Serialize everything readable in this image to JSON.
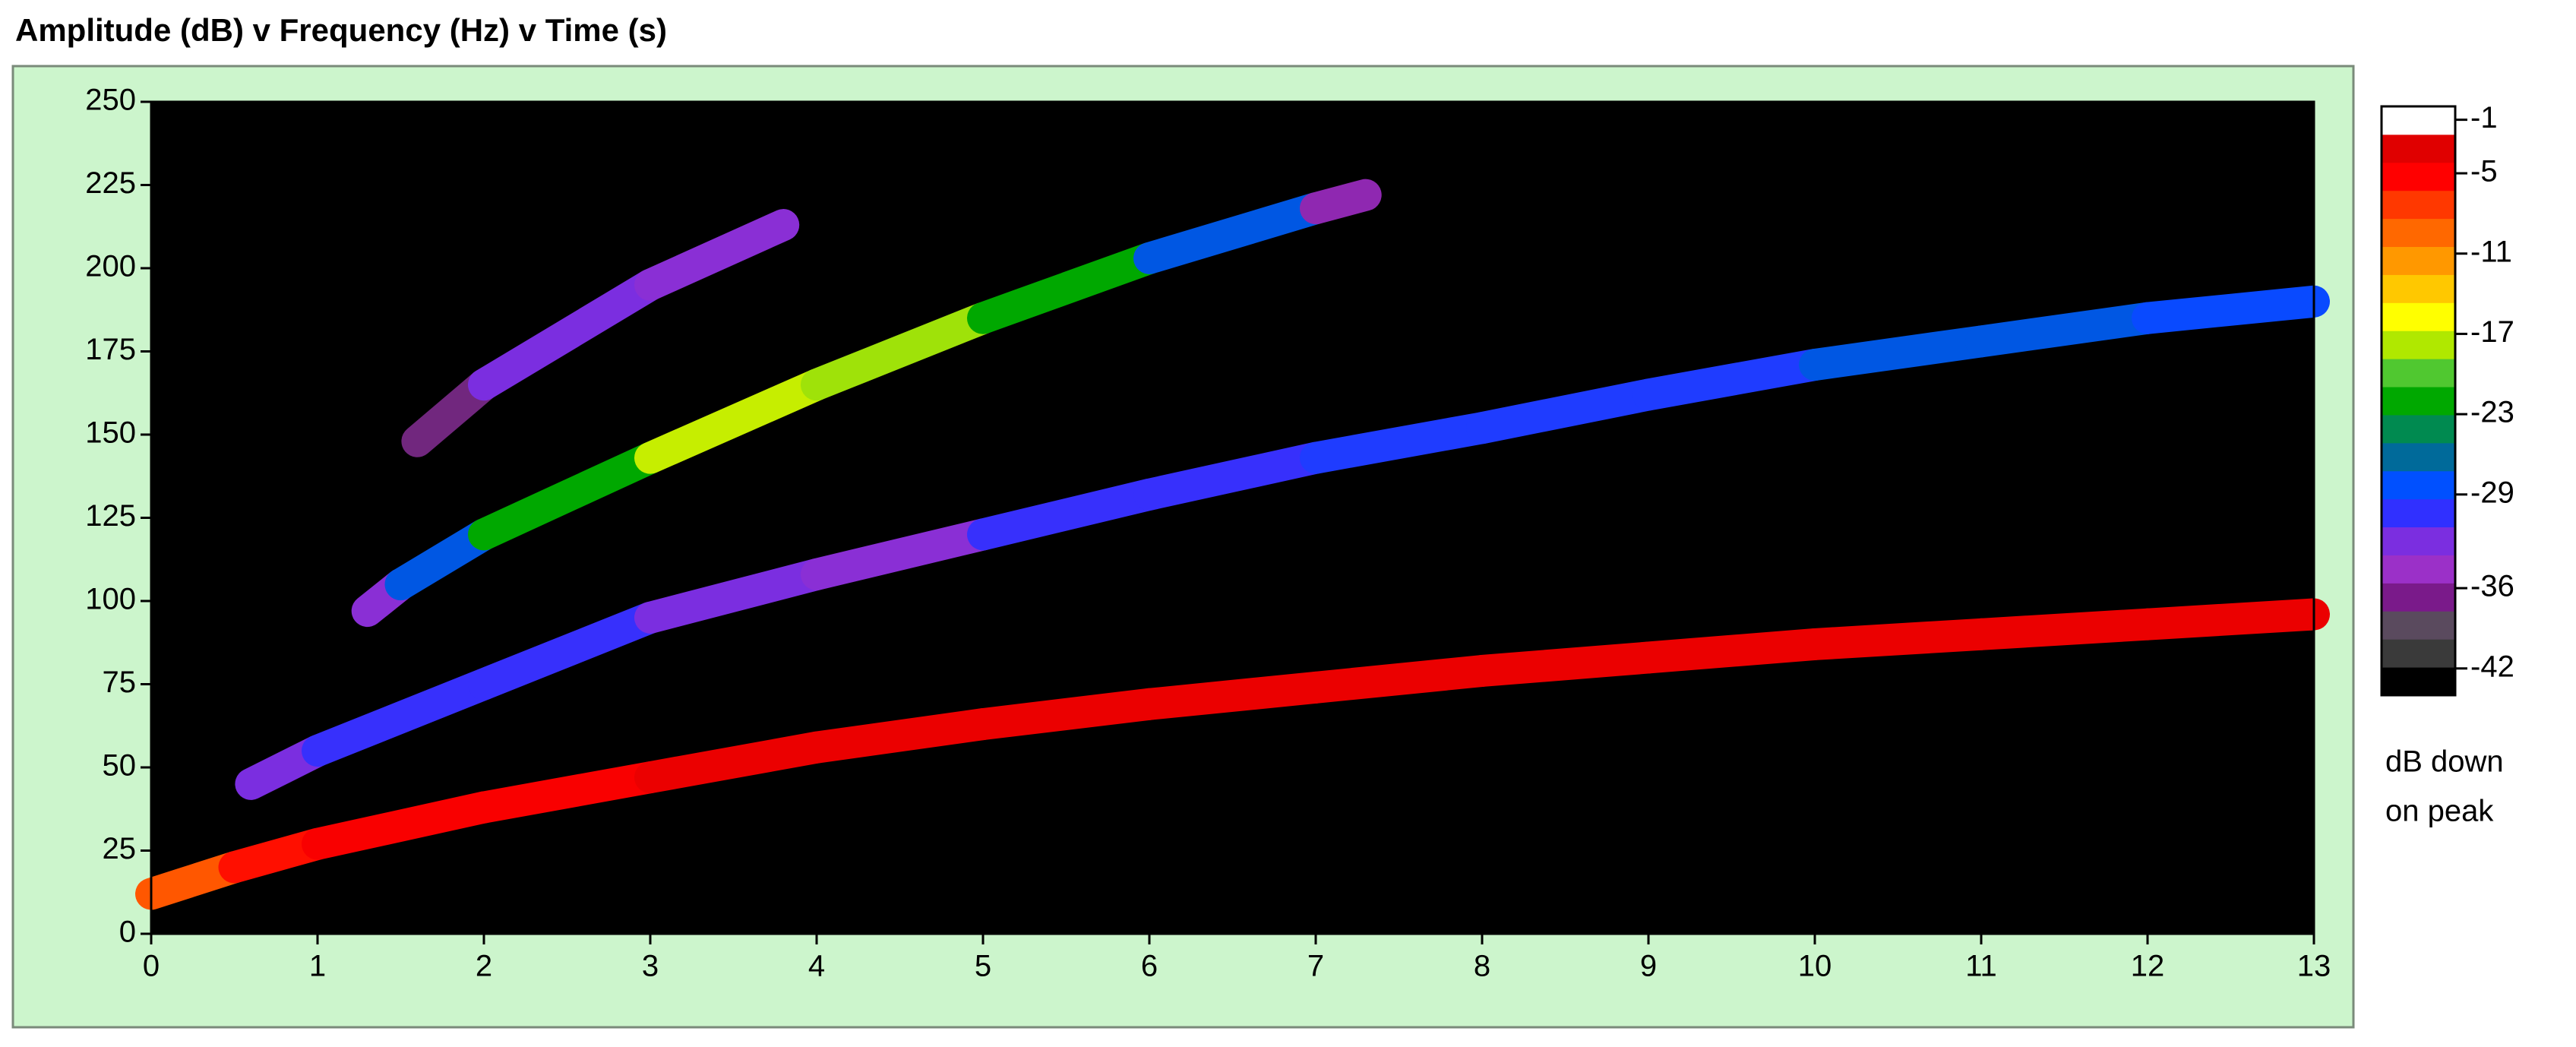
{
  "chart_data": {
    "type": "spectrogram",
    "title": "Amplitude (dB) v Frequency (Hz) v Time (s)",
    "xlim": [
      0,
      13
    ],
    "xticks": [
      0,
      1,
      2,
      3,
      4,
      5,
      6,
      7,
      8,
      9,
      10,
      11,
      12,
      13
    ],
    "ylim": [
      0,
      250
    ],
    "yticks": [
      0,
      25,
      50,
      75,
      100,
      125,
      150,
      175,
      200,
      225,
      250
    ],
    "colorlim": [
      -44,
      0
    ],
    "cticks": [
      -1,
      -5,
      -11,
      -17,
      -23,
      -29,
      -36,
      -42
    ],
    "colorbar_label": [
      "dB down",
      "on peak"
    ],
    "colormap": [
      "#000000",
      "#3a3a3a",
      "#5a4a5e",
      "#7a1a8a",
      "#9b30c8",
      "#7b2ee0",
      "#3030ff",
      "#0050ff",
      "#006a9a",
      "#008a50",
      "#00a800",
      "#50c830",
      "#b0e800",
      "#ffff00",
      "#ffc800",
      "#ff9800",
      "#ff6800",
      "#ff3800",
      "#ff0000",
      "#e00000",
      "#ffffff"
    ],
    "background": "#000000",
    "panel_color": "#ccf5cc",
    "tracks": [
      {
        "x": [
          0,
          0.5,
          1,
          2,
          3,
          4,
          5,
          6,
          7,
          8,
          9,
          10,
          11,
          12,
          13
        ],
        "y": [
          12,
          20,
          27,
          38,
          47,
          56,
          63,
          69,
          74,
          79,
          83,
          87,
          90,
          93,
          96
        ],
        "amplitude": [
          -8,
          -5,
          -4,
          -4,
          -3,
          -3,
          -3,
          -3,
          -3,
          -3,
          -3,
          -3,
          -3,
          -3,
          -3
        ]
      },
      {
        "x": [
          0.6,
          1,
          2,
          3,
          4,
          5,
          6,
          7,
          8,
          9,
          10,
          11,
          12,
          13
        ],
        "y": [
          45,
          55,
          75,
          95,
          108,
          120,
          132,
          143,
          152,
          162,
          171,
          178,
          185,
          190
        ],
        "amplitude": [
          -33,
          -31,
          -31,
          -33,
          -34,
          -31,
          -31,
          -30,
          -30,
          -30,
          -28,
          -28,
          -29,
          -30
        ]
      },
      {
        "x": [
          1.3,
          1.5,
          2,
          3,
          4,
          5,
          6,
          7,
          7.3
        ],
        "y": [
          97,
          105,
          120,
          143,
          165,
          185,
          203,
          218,
          222
        ],
        "amplitude": [
          -34,
          -28,
          -22,
          -17,
          -18,
          -22,
          -28,
          -36,
          -40
        ]
      },
      {
        "x": [
          1.6,
          2,
          3,
          3.8
        ],
        "y": [
          148,
          165,
          195,
          213
        ],
        "amplitude": [
          -38,
          -33,
          -34,
          -37
        ]
      }
    ]
  }
}
